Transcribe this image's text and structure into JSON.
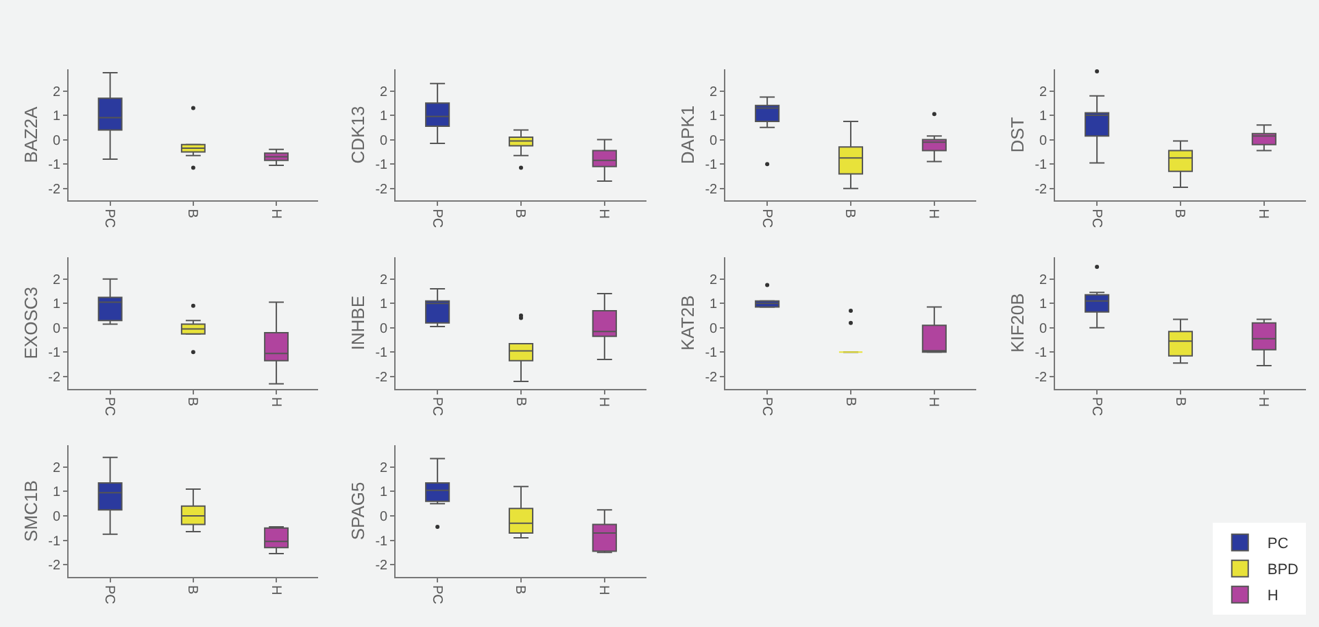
{
  "chart_data": [
    {
      "type": "box",
      "ylabel": "BAZ2A",
      "categories": [
        "PC",
        "B",
        "H"
      ],
      "ylim": [
        -2.5,
        2.9
      ],
      "yticks": [
        -2,
        -1,
        0,
        1,
        2
      ],
      "grid": false,
      "legend": "bottom right",
      "series": [
        {
          "name": "PC",
          "color": "#2b3a9e",
          "boxes": [
            {
              "low": -0.8,
              "q1": 0.4,
              "median": 0.9,
              "q3": 1.7,
              "high": 2.75
            },
            null,
            null
          ]
        },
        {
          "name": "BPD",
          "color": "#e8e23a",
          "boxes": [
            null,
            {
              "low": -0.65,
              "q1": -0.5,
              "median": -0.35,
              "q3": -0.2,
              "high": -0.2,
              "outliers": [
                1.3,
                -1.15
              ]
            },
            null
          ]
        },
        {
          "name": "H",
          "color": "#b0449e",
          "boxes": [
            null,
            null,
            {
              "low": -1.05,
              "q1": -0.85,
              "median": -0.7,
              "q3": -0.55,
              "high": -0.4
            }
          ]
        }
      ]
    },
    {
      "type": "box",
      "ylabel": "CDK13",
      "categories": [
        "PC",
        "B",
        "H"
      ],
      "ylim": [
        -2.5,
        2.9
      ],
      "yticks": [
        -2,
        -1,
        0,
        1,
        2
      ],
      "grid": false,
      "series": [
        {
          "color": "#2b3a9e",
          "boxes": [
            {
              "low": -0.15,
              "q1": 0.55,
              "median": 0.95,
              "q3": 1.5,
              "high": 2.3
            },
            null,
            null
          ]
        },
        {
          "color": "#e8e23a",
          "boxes": [
            null,
            {
              "low": -0.65,
              "q1": -0.25,
              "median": -0.05,
              "q3": 0.1,
              "high": 0.4,
              "outliers": [
                -1.15
              ]
            },
            null
          ]
        },
        {
          "color": "#b0449e",
          "boxes": [
            null,
            null,
            {
              "low": -1.7,
              "q1": -1.1,
              "median": -0.85,
              "q3": -0.45,
              "high": 0
            }
          ]
        }
      ]
    },
    {
      "type": "box",
      "ylabel": "DAPK1",
      "categories": [
        "PC",
        "B",
        "H"
      ],
      "ylim": [
        -2.5,
        2.9
      ],
      "yticks": [
        -2,
        -1,
        0,
        1,
        2
      ],
      "grid": false,
      "series": [
        {
          "color": "#2b3a9e",
          "boxes": [
            {
              "low": 0.5,
              "q1": 0.75,
              "median": 1.3,
              "q3": 1.4,
              "high": 1.75,
              "outliers": [
                -1.0
              ]
            },
            null,
            null
          ]
        },
        {
          "color": "#e8e23a",
          "boxes": [
            null,
            {
              "low": -2.0,
              "q1": -1.4,
              "median": -0.75,
              "q3": -0.3,
              "high": 0.75
            },
            null
          ]
        },
        {
          "color": "#b0449e",
          "boxes": [
            null,
            null,
            {
              "low": -0.9,
              "q1": -0.45,
              "median": -0.1,
              "q3": 0,
              "high": 0.15,
              "outliers": [
                1.05
              ]
            }
          ]
        }
      ]
    },
    {
      "type": "box",
      "ylabel": "DST",
      "categories": [
        "PC",
        "B",
        "H"
      ],
      "ylim": [
        -2.5,
        2.9
      ],
      "yticks": [
        -2,
        -1,
        0,
        1,
        2
      ],
      "grid": false,
      "series": [
        {
          "color": "#2b3a9e",
          "boxes": [
            {
              "low": -0.95,
              "q1": 0.15,
              "median": 1.0,
              "q3": 1.1,
              "high": 1.8,
              "outliers": [
                2.8
              ]
            },
            null,
            null
          ]
        },
        {
          "color": "#e8e23a",
          "boxes": [
            null,
            {
              "low": -1.95,
              "q1": -1.3,
              "median": -0.75,
              "q3": -0.45,
              "high": -0.05
            },
            null
          ]
        },
        {
          "color": "#b0449e",
          "boxes": [
            null,
            null,
            {
              "low": -0.45,
              "q1": -0.2,
              "median": 0.15,
              "q3": 0.25,
              "high": 0.6
            }
          ]
        }
      ]
    },
    {
      "type": "box",
      "ylabel": "EXOSC3",
      "categories": [
        "PC",
        "B",
        "H"
      ],
      "ylim": [
        -2.5,
        2.9
      ],
      "yticks": [
        -2,
        -1,
        0,
        1,
        2
      ],
      "grid": false,
      "series": [
        {
          "color": "#2b3a9e",
          "boxes": [
            {
              "low": 0.15,
              "q1": 0.3,
              "median": 1.05,
              "q3": 1.25,
              "high": 2.0
            },
            null,
            null
          ]
        },
        {
          "color": "#e8e23a",
          "boxes": [
            null,
            {
              "low": -0.25,
              "q1": -0.25,
              "median": -0.05,
              "q3": 0.15,
              "high": 0.3,
              "outliers": [
                0.9,
                -1.0
              ]
            },
            null
          ]
        },
        {
          "color": "#b0449e",
          "boxes": [
            null,
            null,
            {
              "low": -2.3,
              "q1": -1.35,
              "median": -1.05,
              "q3": -0.2,
              "high": 1.05
            }
          ]
        }
      ]
    },
    {
      "type": "box",
      "ylabel": "INHBE",
      "categories": [
        "PC",
        "B",
        "H"
      ],
      "ylim": [
        -2.5,
        2.9
      ],
      "yticks": [
        -2,
        -1,
        0,
        1,
        2
      ],
      "grid": false,
      "series": [
        {
          "color": "#2b3a9e",
          "boxes": [
            {
              "low": 0.05,
              "q1": 0.2,
              "median": 1.0,
              "q3": 1.1,
              "high": 1.6
            },
            null,
            null
          ]
        },
        {
          "color": "#e8e23a",
          "boxes": [
            null,
            {
              "low": -2.2,
              "q1": -1.35,
              "median": -0.95,
              "q3": -0.65,
              "high": -0.65,
              "outliers": [
                0.5,
                0.4
              ]
            },
            null
          ]
        },
        {
          "color": "#b0449e",
          "boxes": [
            null,
            null,
            {
              "low": -1.3,
              "q1": -0.35,
              "median": -0.15,
              "q3": 0.7,
              "high": 1.4
            }
          ]
        }
      ]
    },
    {
      "type": "box",
      "ylabel": "KAT2B",
      "categories": [
        "PC",
        "B",
        "H"
      ],
      "ylim": [
        -2.5,
        2.9
      ],
      "yticks": [
        -2,
        -1,
        0,
        1,
        2
      ],
      "grid": false,
      "series": [
        {
          "color": "#2b3a9e",
          "boxes": [
            {
              "low": 0.85,
              "q1": 0.85,
              "median": 1.0,
              "q3": 1.1,
              "high": 1.1,
              "outliers": [
                1.75
              ]
            },
            null,
            null
          ]
        },
        {
          "color": "#e8e23a",
          "boxes": [
            null,
            {
              "low": -1.0,
              "q1": -1.0,
              "median": -1.0,
              "q3": -1.0,
              "high": -1.0,
              "outliers": [
                0.7,
                0.2
              ]
            },
            null
          ]
        },
        {
          "color": "#b0449e",
          "boxes": [
            null,
            null,
            {
              "low": -1.0,
              "q1": -1.0,
              "median": -1.0,
              "q3": 0.1,
              "high": 0.85
            }
          ]
        }
      ]
    },
    {
      "type": "box",
      "ylabel": "KIF20B",
      "categories": [
        "PC",
        "B",
        "H"
      ],
      "ylim": [
        -2.5,
        2.9
      ],
      "yticks": [
        -2,
        -1,
        0,
        1,
        2
      ],
      "grid": false,
      "series": [
        {
          "color": "#2b3a9e",
          "boxes": [
            {
              "low": 0.0,
              "q1": 0.65,
              "median": 1.1,
              "q3": 1.35,
              "high": 1.45,
              "outliers": [
                2.5
              ]
            },
            null,
            null
          ]
        },
        {
          "color": "#e8e23a",
          "boxes": [
            null,
            {
              "low": -1.45,
              "q1": -1.15,
              "median": -0.55,
              "q3": -0.15,
              "high": 0.35
            },
            null
          ]
        },
        {
          "color": "#b0449e",
          "boxes": [
            null,
            null,
            {
              "low": -1.55,
              "q1": -0.9,
              "median": -0.45,
              "q3": 0.2,
              "high": 0.35
            }
          ]
        }
      ]
    },
    {
      "type": "box",
      "ylabel": "SMC1B",
      "categories": [
        "PC",
        "B",
        "H"
      ],
      "ylim": [
        -2.5,
        2.9
      ],
      "yticks": [
        -2,
        -1,
        0,
        1,
        2
      ],
      "grid": false,
      "series": [
        {
          "color": "#2b3a9e",
          "boxes": [
            {
              "low": -0.75,
              "q1": 0.25,
              "median": 0.95,
              "q3": 1.35,
              "high": 2.4
            },
            null,
            null
          ]
        },
        {
          "color": "#e8e23a",
          "boxes": [
            null,
            {
              "low": -0.65,
              "q1": -0.35,
              "median": 0.0,
              "q3": 0.4,
              "high": 1.1
            },
            null
          ]
        },
        {
          "color": "#b0449e",
          "boxes": [
            null,
            null,
            {
              "low": -1.55,
              "q1": -1.3,
              "median": -1.05,
              "q3": -0.5,
              "high": -0.45
            }
          ]
        }
      ]
    },
    {
      "type": "box",
      "ylabel": "SPAG5",
      "categories": [
        "PC",
        "B",
        "H"
      ],
      "ylim": [
        -2.5,
        2.9
      ],
      "yticks": [
        -2,
        -1,
        0,
        1,
        2
      ],
      "grid": false,
      "series": [
        {
          "color": "#2b3a9e",
          "boxes": [
            {
              "low": 0.5,
              "q1": 0.6,
              "median": 1.05,
              "q3": 1.35,
              "high": 2.35,
              "outliers": [
                -0.45
              ]
            },
            null,
            null
          ]
        },
        {
          "color": "#e8e23a",
          "boxes": [
            null,
            {
              "low": -0.9,
              "q1": -0.7,
              "median": -0.3,
              "q3": 0.3,
              "high": 1.2
            },
            null
          ]
        },
        {
          "color": "#b0449e",
          "boxes": [
            null,
            null,
            {
              "low": -1.5,
              "q1": -1.45,
              "median": -0.7,
              "q3": -0.35,
              "high": 0.25
            }
          ]
        }
      ]
    }
  ]
}
